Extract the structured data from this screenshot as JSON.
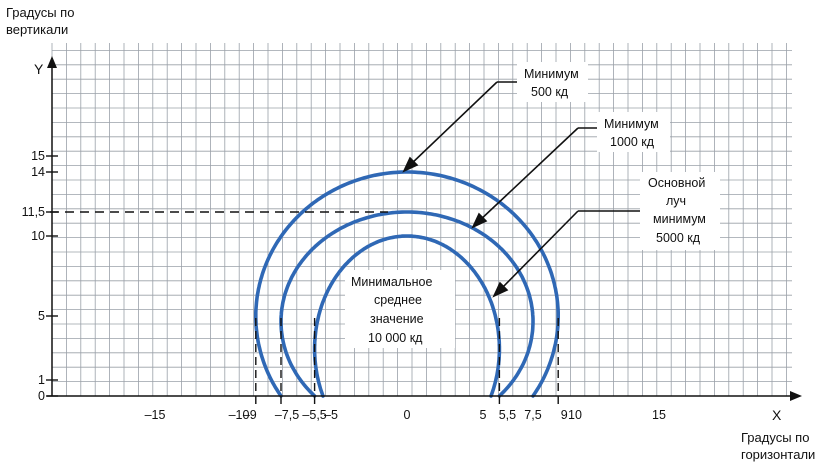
{
  "axis_labels": {
    "y_title_line1": "Градусы по",
    "y_title_line2": "вертикали",
    "y_letter": "Y",
    "x_letter": "X",
    "x_title_line1": "Градусы по",
    "x_title_line2": "горизонтали"
  },
  "y_ticks": [
    {
      "label": "15",
      "value": 15
    },
    {
      "label": "14",
      "value": 14
    },
    {
      "label": "11,5",
      "value": 11.5
    },
    {
      "label": "10",
      "value": 10
    },
    {
      "label": "5",
      "value": 5
    },
    {
      "label": "1",
      "value": 1
    },
    {
      "label": "0",
      "value": 0
    }
  ],
  "x_ticks": [
    {
      "label": "–15",
      "value": -15
    },
    {
      "label": "–10",
      "value": -10
    },
    {
      "label": "–9",
      "value": -9
    },
    {
      "label": "–7,5",
      "value": -7.5
    },
    {
      "label": "–5,5",
      "value": -5.5
    },
    {
      "label": "–5",
      "value": -5
    },
    {
      "label": "0",
      "value": 0
    },
    {
      "label": "5",
      "value": 5
    },
    {
      "label": "5,5",
      "value": 5.5
    },
    {
      "label": "7,5",
      "value": 7.5
    },
    {
      "label": "9",
      "value": 9
    },
    {
      "label": "10",
      "value": 10
    },
    {
      "label": "15",
      "value": 15
    }
  ],
  "callouts": {
    "min500": [
      "Минимум",
      "500 кд"
    ],
    "min1000": [
      "Минимум",
      "1000 кд"
    ],
    "main_beam": [
      "Основной",
      "луч",
      "минимум",
      "5000 кд"
    ],
    "center": [
      "Минимальное",
      "среднее",
      "значение",
      "10 000 кд"
    ]
  },
  "chart_data": {
    "type": "contour",
    "x_range": [
      -24,
      24
    ],
    "y_range": [
      0,
      23
    ],
    "grid": true,
    "isolines": [
      {
        "name": "500 кд",
        "x_extent": [
          -9,
          9
        ],
        "x_at_base": [
          -7.5,
          7.5
        ],
        "y_top": 14
      },
      {
        "name": "1000 кд",
        "x_extent": [
          -7.5,
          7.5
        ],
        "x_at_base": [
          -5.5,
          5.5
        ],
        "y_top": 11.5
      },
      {
        "name": "5000 кд",
        "x_extent": [
          -5.5,
          5.5
        ],
        "x_at_base": [
          -5,
          5
        ],
        "y_top": 10
      }
    ],
    "reference_lines": [
      {
        "axis": "y",
        "value": 11.5,
        "style": "dashed"
      },
      {
        "axis": "x",
        "values": [
          -9,
          -7.5,
          -5.5,
          5.5,
          9
        ],
        "style": "dashed"
      }
    ],
    "colors": {
      "isoline": "#2f68b5",
      "grid": "#9aa0a8",
      "axis": "#111111"
    }
  }
}
